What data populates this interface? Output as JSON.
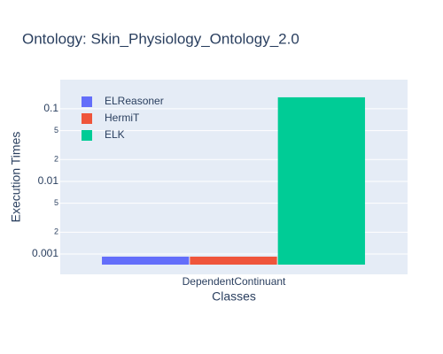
{
  "chart_data": {
    "type": "bar",
    "title": "Ontology: Skin_Physiology_Ontology_2.0",
    "xlabel": "Classes",
    "ylabel": "Execution Times",
    "categories": [
      "DependentContinuant"
    ],
    "series": [
      {
        "name": "ELReasoner",
        "color": "#636efa",
        "values": [
          0.00092
        ]
      },
      {
        "name": "HermiT",
        "color": "#ef553b",
        "values": [
          0.00092
        ]
      },
      {
        "name": "ELK",
        "color": "#00cc96",
        "values": [
          0.144
        ]
      }
    ],
    "log_y": true,
    "ylim": [
      0.000525,
      0.252
    ],
    "yticks": [
      0.001,
      {
        "value": 0.002,
        "label": "2"
      },
      {
        "value": 0.005,
        "label": "5"
      },
      0.01,
      {
        "value": 0.02,
        "label": "2"
      },
      {
        "value": 0.05,
        "label": "5"
      },
      0.1
    ],
    "grid": true,
    "legend": "top-left"
  }
}
